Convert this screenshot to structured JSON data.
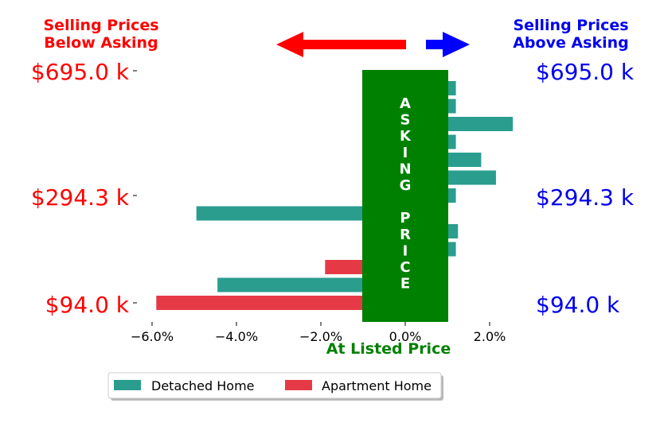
{
  "header": {
    "below_line1": "Selling Prices",
    "below_line2": "Below Asking",
    "above_line1": "Selling Prices",
    "above_line2": "Above Asking"
  },
  "price_labels": [
    "$695.0 k",
    "$294.3 k",
    "$94.0 k"
  ],
  "center_band": {
    "letters": [
      "A",
      "S",
      "K",
      "I",
      "N",
      "G",
      "",
      "P",
      "R",
      "I",
      "C",
      "E"
    ]
  },
  "colors": {
    "detached": "#2a9d8f",
    "apartment": "#e63946",
    "band": "#008000",
    "below": "#ff0000",
    "above": "#0000ee"
  },
  "chart_data": {
    "type": "bar",
    "orientation": "horizontal",
    "xlabel": "At Listed Price",
    "x_ticks": [
      "−6.0%",
      "−4.0%",
      "−2.0%",
      "0.0%",
      "2.0%"
    ],
    "x_tick_values": [
      -6,
      -4,
      -2,
      0,
      2
    ],
    "xlim": [
      -6.5,
      3.0
    ],
    "bars": [
      {
        "series": "Detached Home",
        "value": 1.2
      },
      {
        "series": "Detached Home",
        "value": 1.2
      },
      {
        "series": "Detached Home",
        "value": 2.55
      },
      {
        "series": "Detached Home",
        "value": 1.2
      },
      {
        "series": "Detached Home",
        "value": 1.8
      },
      {
        "series": "Detached Home",
        "value": 2.15
      },
      {
        "series": "Detached Home",
        "value": 1.2
      },
      {
        "series": "Detached Home",
        "value": -4.95
      },
      {
        "series": "Detached Home",
        "value": 1.25
      },
      {
        "series": "Detached Home",
        "value": 1.2
      },
      {
        "series": "Apartment Home",
        "value": -1.9
      },
      {
        "series": "Detached Home",
        "value": -4.45
      },
      {
        "series": "Apartment Home",
        "value": -5.9
      }
    ],
    "legend": [
      "Detached Home",
      "Apartment Home"
    ],
    "legend_position": "bottom"
  }
}
